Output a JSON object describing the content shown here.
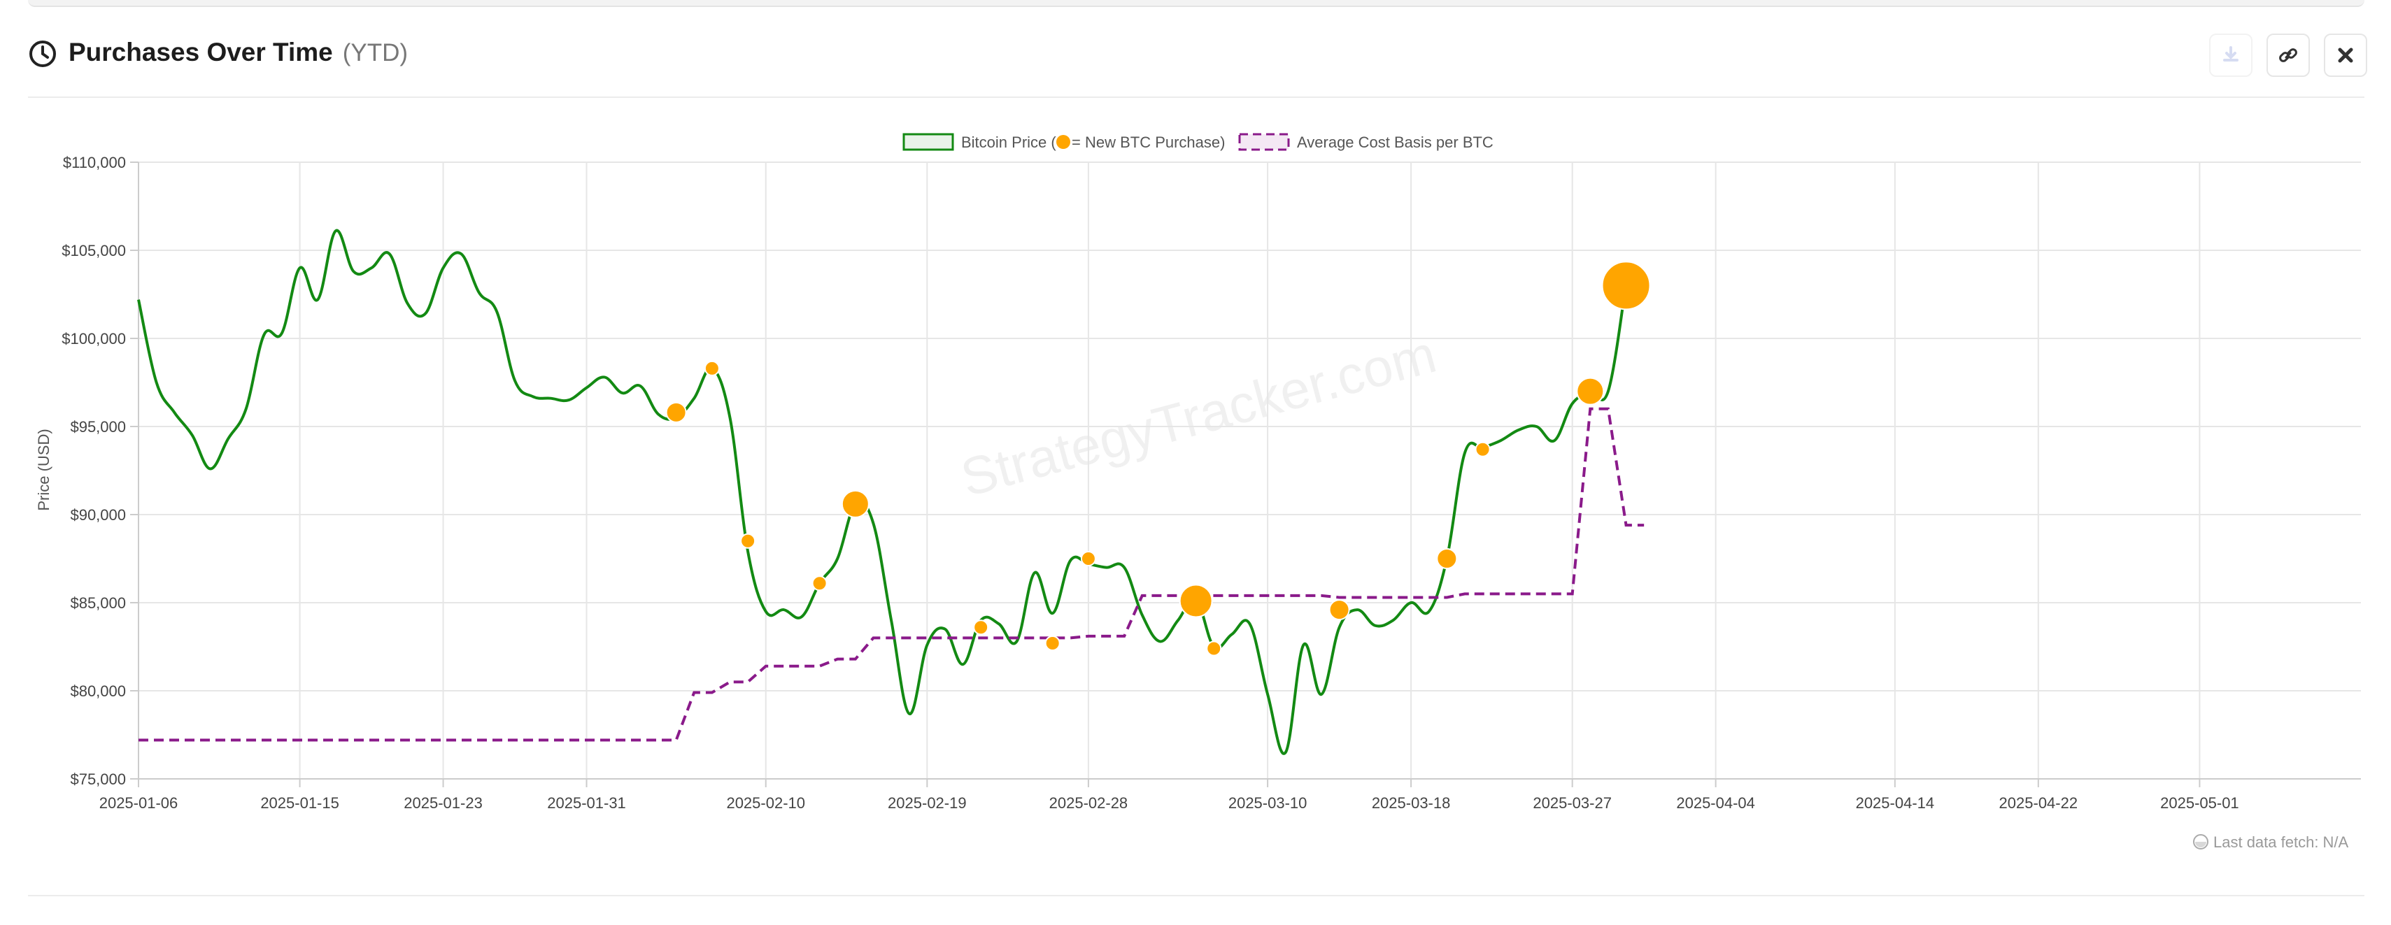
{
  "header": {
    "title": "Purchases Over Time",
    "subtitle": "(YTD)",
    "icons": {
      "title": "clock-icon",
      "download": "download-icon",
      "link": "link-icon",
      "close": "close-icon"
    }
  },
  "footer": {
    "last_fetch": "Last data fetch: N/A"
  },
  "watermark": "StrategyTracker.com",
  "colors": {
    "price_line": "#138a13",
    "cost_basis": "#8a1a8a",
    "purchase_dot": "#ffa500",
    "grid": "#e6e6e6"
  },
  "chart_data": {
    "type": "line",
    "ylabel": "Price (USD)",
    "ylim": [
      75000,
      110000
    ],
    "yticks": [
      {
        "value": 75000,
        "label": "$75,000"
      },
      {
        "value": 80000,
        "label": "$80,000"
      },
      {
        "value": 85000,
        "label": "$85,000"
      },
      {
        "value": 90000,
        "label": "$90,000"
      },
      {
        "value": 95000,
        "label": "$95,000"
      },
      {
        "value": 100000,
        "label": "$100,000"
      },
      {
        "value": 105000,
        "label": "$105,000"
      },
      {
        "value": 110000,
        "label": "$110,000"
      }
    ],
    "xlim": [
      "2025-01-06",
      "2025-05-10"
    ],
    "xticks": [
      "2025-01-06",
      "2025-01-15",
      "2025-01-23",
      "2025-01-31",
      "2025-02-10",
      "2025-02-19",
      "2025-02-28",
      "2025-03-10",
      "2025-03-18",
      "2025-03-27",
      "2025-04-04",
      "2025-04-14",
      "2025-04-22",
      "2025-05-01"
    ],
    "legend": {
      "position": "top-center",
      "price": {
        "before": "Bitcoin Price (",
        "after": " = New BTC Purchase)"
      },
      "cost_basis": "Average Cost Basis per BTC"
    },
    "series": [
      {
        "name": "Bitcoin Price",
        "style": "solid",
        "points": [
          [
            "2025-01-06",
            102200
          ],
          [
            "2025-01-07",
            97500
          ],
          [
            "2025-01-08",
            95800
          ],
          [
            "2025-01-09",
            94500
          ],
          [
            "2025-01-10",
            92600
          ],
          [
            "2025-01-11",
            94300
          ],
          [
            "2025-01-12",
            96000
          ],
          [
            "2025-01-13",
            100200
          ],
          [
            "2025-01-14",
            100300
          ],
          [
            "2025-01-15",
            104000
          ],
          [
            "2025-01-16",
            102200
          ],
          [
            "2025-01-17",
            106100
          ],
          [
            "2025-01-18",
            103800
          ],
          [
            "2025-01-19",
            104000
          ],
          [
            "2025-01-20",
            104800
          ],
          [
            "2025-01-21",
            102000
          ],
          [
            "2025-01-22",
            101400
          ],
          [
            "2025-01-23",
            104000
          ],
          [
            "2025-01-24",
            104800
          ],
          [
            "2025-01-25",
            102600
          ],
          [
            "2025-01-26",
            101500
          ],
          [
            "2025-01-27",
            97600
          ],
          [
            "2025-01-28",
            96700
          ],
          [
            "2025-01-29",
            96600
          ],
          [
            "2025-01-30",
            96500
          ],
          [
            "2025-01-31",
            97200
          ],
          [
            "2025-02-01",
            97800
          ],
          [
            "2025-02-02",
            96900
          ],
          [
            "2025-02-03",
            97300
          ],
          [
            "2025-02-04",
            95700
          ],
          [
            "2025-02-05",
            95500
          ],
          [
            "2025-02-06",
            96600
          ],
          [
            "2025-02-07",
            98300
          ],
          [
            "2025-02-08",
            95500
          ],
          [
            "2025-02-09",
            87900
          ],
          [
            "2025-02-10",
            84500
          ],
          [
            "2025-02-11",
            84600
          ],
          [
            "2025-02-12",
            84200
          ],
          [
            "2025-02-13",
            86100
          ],
          [
            "2025-02-14",
            87500
          ],
          [
            "2025-02-15",
            90600
          ],
          [
            "2025-02-16",
            89500
          ],
          [
            "2025-02-17",
            84000
          ],
          [
            "2025-02-18",
            78700
          ],
          [
            "2025-02-19",
            82600
          ],
          [
            "2025-02-20",
            83500
          ],
          [
            "2025-02-21",
            81500
          ],
          [
            "2025-02-22",
            84000
          ],
          [
            "2025-02-23",
            83800
          ],
          [
            "2025-02-24",
            82800
          ],
          [
            "2025-02-25",
            86700
          ],
          [
            "2025-02-26",
            84400
          ],
          [
            "2025-02-27",
            87400
          ],
          [
            "2025-02-28",
            87200
          ],
          [
            "2025-03-01",
            87000
          ],
          [
            "2025-03-02",
            87000
          ],
          [
            "2025-03-03",
            84300
          ],
          [
            "2025-03-04",
            82800
          ],
          [
            "2025-03-05",
            84000
          ],
          [
            "2025-03-06",
            85200
          ],
          [
            "2025-03-07",
            82500
          ],
          [
            "2025-03-08",
            83200
          ],
          [
            "2025-03-09",
            83800
          ],
          [
            "2025-03-10",
            79800
          ],
          [
            "2025-03-11",
            76500
          ],
          [
            "2025-03-12",
            82600
          ],
          [
            "2025-03-13",
            79800
          ],
          [
            "2025-03-14",
            83600
          ],
          [
            "2025-03-15",
            84600
          ],
          [
            "2025-03-16",
            83700
          ],
          [
            "2025-03-17",
            84000
          ],
          [
            "2025-03-18",
            85000
          ],
          [
            "2025-03-19",
            84500
          ],
          [
            "2025-03-20",
            87500
          ],
          [
            "2025-03-21",
            93500
          ],
          [
            "2025-03-22",
            93800
          ],
          [
            "2025-03-23",
            94200
          ],
          [
            "2025-03-24",
            94800
          ],
          [
            "2025-03-25",
            95000
          ],
          [
            "2025-03-26",
            94200
          ],
          [
            "2025-03-27",
            96300
          ],
          [
            "2025-03-28",
            96900
          ],
          [
            "2025-03-29",
            97000
          ],
          [
            "2025-03-30",
            103100
          ]
        ]
      },
      {
        "name": "Average Cost Basis per BTC",
        "style": "dashed",
        "points": [
          [
            "2025-01-06",
            77200
          ],
          [
            "2025-02-05",
            77200
          ],
          [
            "2025-02-06",
            79900
          ],
          [
            "2025-02-07",
            79900
          ],
          [
            "2025-02-08",
            80500
          ],
          [
            "2025-02-09",
            80500
          ],
          [
            "2025-02-10",
            81400
          ],
          [
            "2025-02-13",
            81400
          ],
          [
            "2025-02-14",
            81800
          ],
          [
            "2025-02-15",
            81800
          ],
          [
            "2025-02-16",
            83000
          ],
          [
            "2025-02-27",
            83000
          ],
          [
            "2025-02-28",
            83100
          ],
          [
            "2025-03-02",
            83100
          ],
          [
            "2025-03-03",
            85400
          ],
          [
            "2025-03-13",
            85400
          ],
          [
            "2025-03-14",
            85300
          ],
          [
            "2025-03-20",
            85300
          ],
          [
            "2025-03-21",
            85500
          ],
          [
            "2025-03-27",
            85500
          ],
          [
            "2025-03-28",
            96000
          ],
          [
            "2025-03-29",
            96000
          ],
          [
            "2025-03-30",
            89400
          ],
          [
            "2025-03-31",
            89400
          ]
        ]
      }
    ],
    "purchases": [
      {
        "date": "2025-02-05",
        "price": 95800,
        "size": "small"
      },
      {
        "date": "2025-02-07",
        "price": 98300,
        "size": "tiny"
      },
      {
        "date": "2025-02-09",
        "price": 88500,
        "size": "tiny"
      },
      {
        "date": "2025-02-13",
        "price": 86100,
        "size": "tiny"
      },
      {
        "date": "2025-02-15",
        "price": 90600,
        "size": "medium"
      },
      {
        "date": "2025-02-22",
        "price": 83600,
        "size": "tiny"
      },
      {
        "date": "2025-02-26",
        "price": 82700,
        "size": "tiny"
      },
      {
        "date": "2025-02-28",
        "price": 87500,
        "size": "tiny"
      },
      {
        "date": "2025-03-06",
        "price": 85100,
        "size": "large"
      },
      {
        "date": "2025-03-07",
        "price": 82400,
        "size": "tiny"
      },
      {
        "date": "2025-03-14",
        "price": 84600,
        "size": "small"
      },
      {
        "date": "2025-03-20",
        "price": 87500,
        "size": "small"
      },
      {
        "date": "2025-03-22",
        "price": 93700,
        "size": "tiny"
      },
      {
        "date": "2025-03-28",
        "price": 97000,
        "size": "medium"
      },
      {
        "date": "2025-03-30",
        "price": 103000,
        "size": "xlarge"
      }
    ]
  }
}
